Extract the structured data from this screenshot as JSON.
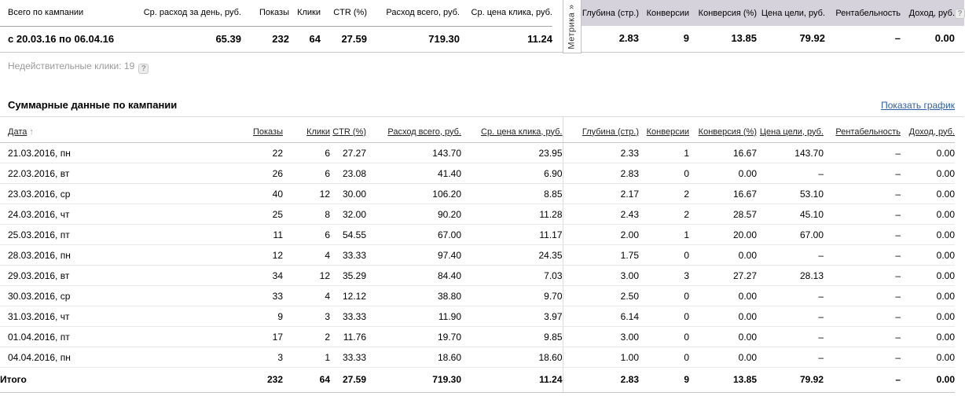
{
  "colors": {
    "metrika_header_bg": "#d6d2db",
    "link_blue": "#2b5ea7",
    "muted_text": "#9a9a9a"
  },
  "icons": {
    "help": "?",
    "sort_up": "↑",
    "chevron": "»"
  },
  "summary_table": {
    "headers_left": [
      "Всего по кампании",
      "Ср. расход за день, руб.",
      "Показы",
      "Клики",
      "CTR (%)",
      "Расход всего, руб.",
      "Ср. цена клика, руб."
    ],
    "headers_right": [
      "Глубина (стр.)",
      "Конверсии",
      "Конверсия (%)",
      "Цена цели, руб.",
      "Рентабельность",
      "Доход, руб."
    ],
    "metrika_tab": "Метрика »",
    "period": "с 20.03.16 по 06.04.16",
    "values_left": [
      "65.39",
      "232",
      "64",
      "27.59",
      "719.30",
      "11.24"
    ],
    "values_right": [
      "2.83",
      "9",
      "13.85",
      "79.92",
      "–",
      "0.00"
    ]
  },
  "invalid_clicks_note": "Недействительные клики: 19",
  "section": {
    "title": "Суммарные данные по кампании",
    "show_chart_link": "Показать график"
  },
  "daily_table": {
    "headers": [
      "Дата",
      "Показы",
      "Клики",
      "CTR (%)",
      "Расход всего, руб.",
      "Ср. цена клика, руб.",
      "Глубина (стр.)",
      "Конверсии",
      "Конверсия (%)",
      "Цена цели, руб.",
      "Рентабельность",
      "Доход, руб."
    ],
    "rows": [
      [
        "21.03.2016, пн",
        "22",
        "6",
        "27.27",
        "143.70",
        "23.95",
        "2.33",
        "1",
        "16.67",
        "143.70",
        "–",
        "0.00"
      ],
      [
        "22.03.2016, вт",
        "26",
        "6",
        "23.08",
        "41.40",
        "6.90",
        "2.83",
        "0",
        "0.00",
        "–",
        "–",
        "0.00"
      ],
      [
        "23.03.2016, ср",
        "40",
        "12",
        "30.00",
        "106.20",
        "8.85",
        "2.17",
        "2",
        "16.67",
        "53.10",
        "–",
        "0.00"
      ],
      [
        "24.03.2016, чт",
        "25",
        "8",
        "32.00",
        "90.20",
        "11.28",
        "2.43",
        "2",
        "28.57",
        "45.10",
        "–",
        "0.00"
      ],
      [
        "25.03.2016, пт",
        "11",
        "6",
        "54.55",
        "67.00",
        "11.17",
        "2.00",
        "1",
        "20.00",
        "67.00",
        "–",
        "0.00"
      ],
      [
        "28.03.2016, пн",
        "12",
        "4",
        "33.33",
        "97.40",
        "24.35",
        "1.75",
        "0",
        "0.00",
        "–",
        "–",
        "0.00"
      ],
      [
        "29.03.2016, вт",
        "34",
        "12",
        "35.29",
        "84.40",
        "7.03",
        "3.00",
        "3",
        "27.27",
        "28.13",
        "–",
        "0.00"
      ],
      [
        "30.03.2016, ср",
        "33",
        "4",
        "12.12",
        "38.80",
        "9.70",
        "2.50",
        "0",
        "0.00",
        "–",
        "–",
        "0.00"
      ],
      [
        "31.03.2016, чт",
        "9",
        "3",
        "33.33",
        "11.90",
        "3.97",
        "6.14",
        "0",
        "0.00",
        "–",
        "–",
        "0.00"
      ],
      [
        "01.04.2016, пт",
        "17",
        "2",
        "11.76",
        "19.70",
        "9.85",
        "3.00",
        "0",
        "0.00",
        "–",
        "–",
        "0.00"
      ],
      [
        "04.04.2016, пн",
        "3",
        "1",
        "33.33",
        "18.60",
        "18.60",
        "1.00",
        "0",
        "0.00",
        "–",
        "–",
        "0.00"
      ]
    ],
    "totals": [
      "Итого",
      "232",
      "64",
      "27.59",
      "719.30",
      "11.24",
      "2.83",
      "9",
      "13.85",
      "79.92",
      "–",
      "0.00"
    ]
  }
}
